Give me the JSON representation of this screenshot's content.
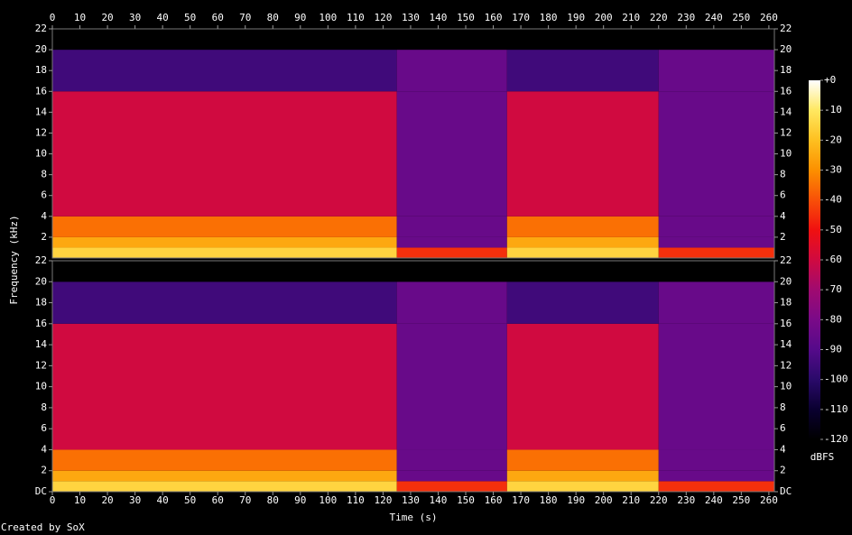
{
  "chart_data": {
    "type": "heatmap",
    "x_label": "Time (s)",
    "y_label": "Frequency (kHz)",
    "colorbar_label": "dBFS",
    "credit": "Created by SoX",
    "xlim": [
      0,
      262
    ],
    "xticks": [
      0,
      10,
      20,
      30,
      40,
      50,
      60,
      70,
      80,
      90,
      100,
      110,
      120,
      130,
      140,
      150,
      160,
      170,
      180,
      190,
      200,
      210,
      220,
      230,
      240,
      250,
      260
    ],
    "ylim": [
      0,
      22
    ],
    "yticks": [
      {
        "value": 0,
        "label": "DC"
      },
      2,
      4,
      6,
      8,
      10,
      12,
      14,
      16,
      18,
      20,
      22
    ],
    "x": [
      0,
      125,
      165,
      220,
      262
    ],
    "y": [
      0,
      1,
      2,
      4,
      16,
      20,
      22
    ],
    "channels": [
      {
        "values": [
          [
            -15,
            -45,
            -15,
            -45
          ],
          [
            -25,
            -85,
            -25,
            -85
          ],
          [
            -35,
            -85,
            -35,
            -85
          ],
          [
            -60,
            -85,
            -60,
            -85
          ],
          [
            -95,
            -85,
            -95,
            -85
          ],
          [
            -120,
            -120,
            -120,
            -120
          ]
        ]
      },
      {
        "values": [
          [
            -15,
            -45,
            -15,
            -45
          ],
          [
            -25,
            -85,
            -25,
            -85
          ],
          [
            -35,
            -85,
            -35,
            -85
          ],
          [
            -60,
            -85,
            -60,
            -85
          ],
          [
            -95,
            -85,
            -95,
            -85
          ],
          [
            -120,
            -120,
            -120,
            -120
          ]
        ]
      }
    ],
    "zlim": [
      -120,
      0
    ],
    "zticks": [
      {
        "value": 0,
        "label": "+0"
      },
      -10,
      -20,
      -30,
      -40,
      -50,
      -60,
      -70,
      -80,
      -90,
      -100,
      -110,
      -120
    ],
    "colors": [
      "#000000",
      "#0a0030",
      "#2a0a6a",
      "#550a8a",
      "#7a0a88",
      "#a00a70",
      "#d00a40",
      "#f01010",
      "#f85008",
      "#fc9000",
      "#fec020",
      "#ffe860",
      "#ffffff"
    ]
  }
}
